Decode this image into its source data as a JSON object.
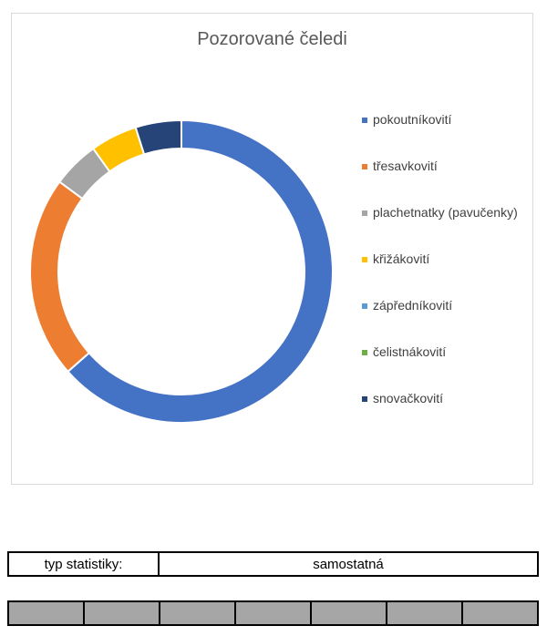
{
  "chart_data": {
    "type": "pie",
    "variant": "donut",
    "title": "Pozorované čeledi",
    "legend_position": "right",
    "categories": [
      "pokoutníkovití",
      "třesavkovití",
      "plachetnatky (pavučenky)",
      "křižákovití",
      "zápředníkovití",
      "čelistnákovití",
      "snovačkovití"
    ],
    "values": [
      63.5,
      21.6,
      5.0,
      5.0,
      0,
      0,
      4.9
    ],
    "colors": [
      "#4472C4",
      "#ED7D31",
      "#A5A5A5",
      "#FFC000",
      "#5B9BD5",
      "#70AD47",
      "#264478"
    ]
  },
  "stats": {
    "label": "typ statistiky:",
    "value": "samostatná"
  },
  "grey_row": {
    "cells": 7,
    "color": "#a6a6a6"
  }
}
